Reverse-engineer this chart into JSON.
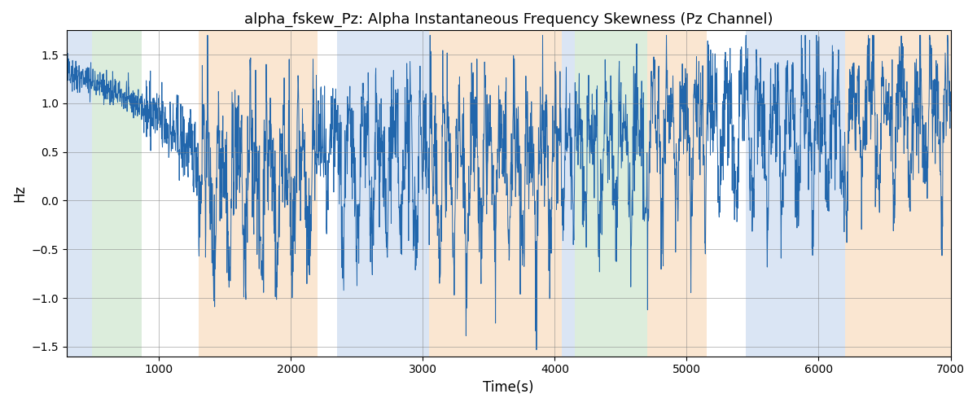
{
  "title": "alpha_fskew_Pz: Alpha Instantaneous Frequency Skewness (Pz Channel)",
  "xlabel": "Time(s)",
  "ylabel": "Hz",
  "xlim": [
    300,
    7000
  ],
  "ylim": [
    -1.6,
    1.75
  ],
  "yticks": [
    -1.5,
    -1.0,
    -0.5,
    0.0,
    0.5,
    1.0,
    1.5
  ],
  "xticks": [
    1000,
    2000,
    3000,
    4000,
    5000,
    6000,
    7000
  ],
  "line_color": "#2166ac",
  "bg_bands": [
    {
      "xmin": 300,
      "xmax": 490,
      "color": "#aec6e8",
      "alpha": 0.45
    },
    {
      "xmin": 490,
      "xmax": 870,
      "color": "#b2d8b2",
      "alpha": 0.45
    },
    {
      "xmin": 1300,
      "xmax": 2200,
      "color": "#f5c89a",
      "alpha": 0.45
    },
    {
      "xmin": 2350,
      "xmax": 3050,
      "color": "#aec6e8",
      "alpha": 0.45
    },
    {
      "xmin": 3050,
      "xmax": 4050,
      "color": "#f5c89a",
      "alpha": 0.45
    },
    {
      "xmin": 4050,
      "xmax": 4150,
      "color": "#aec6e8",
      "alpha": 0.45
    },
    {
      "xmin": 4150,
      "xmax": 4700,
      "color": "#b2d8b2",
      "alpha": 0.45
    },
    {
      "xmin": 4700,
      "xmax": 5150,
      "color": "#f5c89a",
      "alpha": 0.45
    },
    {
      "xmin": 5450,
      "xmax": 6200,
      "color": "#aec6e8",
      "alpha": 0.45
    },
    {
      "xmin": 6200,
      "xmax": 7000,
      "color": "#f5c89a",
      "alpha": 0.45
    }
  ],
  "seed": 42,
  "n_points": 3000
}
